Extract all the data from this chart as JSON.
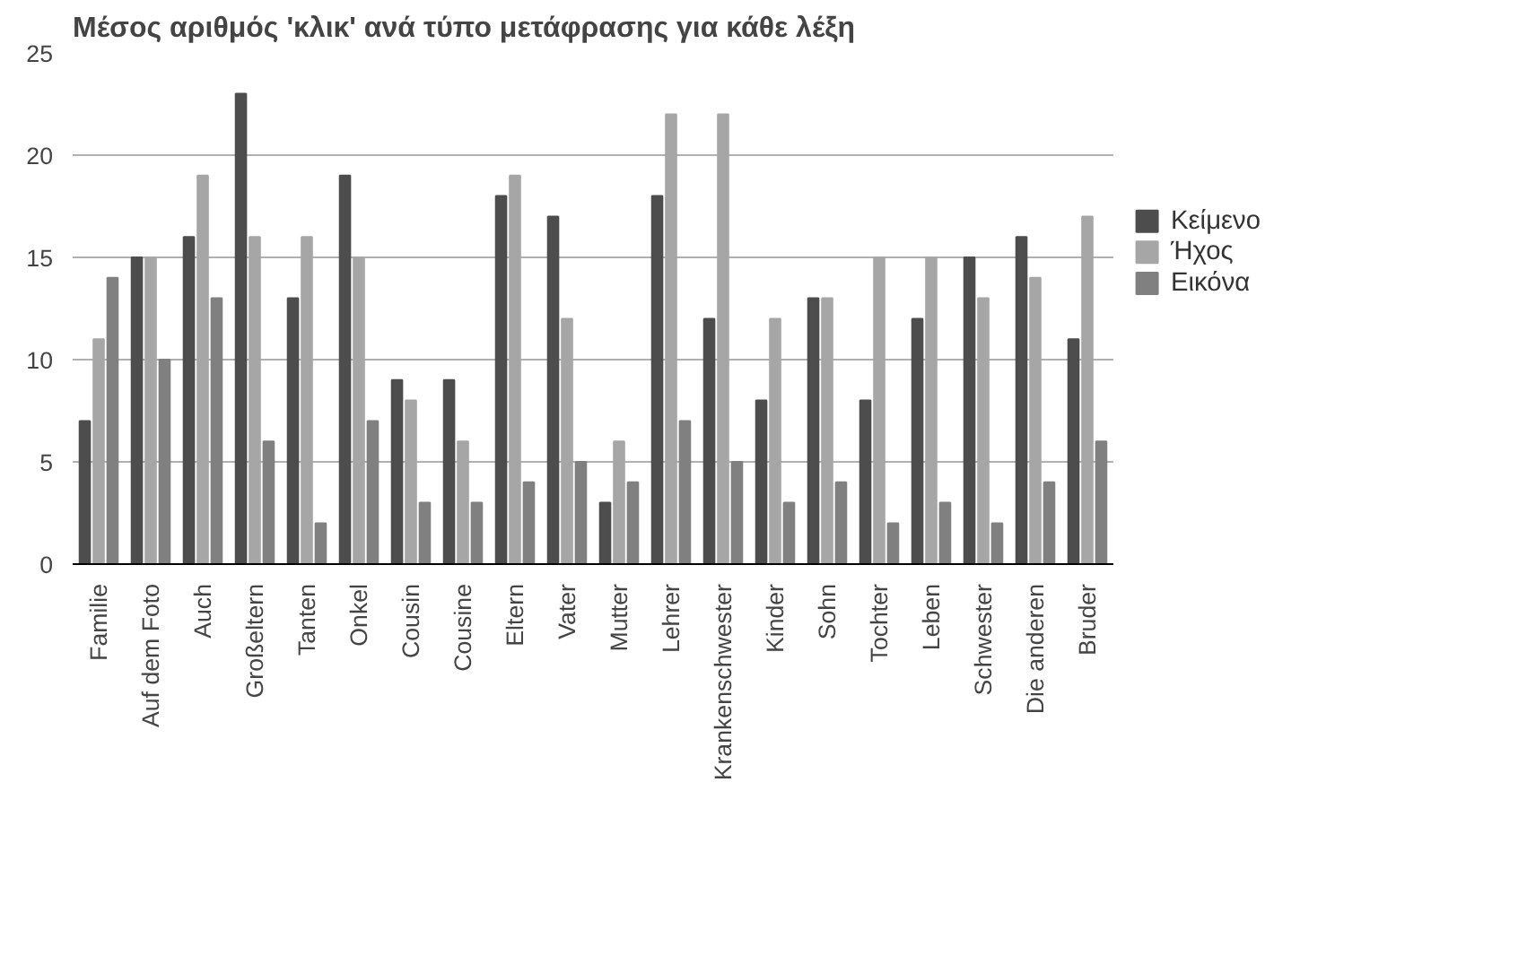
{
  "chart_data": {
    "type": "bar",
    "title": "Μέσος αριθμός 'κλικ' ανά τύπο μετάφρασης για κάθε λέξη",
    "categories": [
      "Familie",
      "Auf dem Foto",
      "Auch",
      "Großeltern",
      "Tanten",
      "Onkel",
      "Cousin",
      "Cousine",
      "Eltern",
      "Vater",
      "Mutter",
      "Lehrer",
      "Krankenschwester",
      "Kinder",
      "Sohn",
      "Tochter",
      "Leben",
      "Schwester",
      "Die anderen",
      "Bruder"
    ],
    "series": [
      {
        "name": "Κείμενο",
        "color": "#4d4d4d",
        "values": [
          7,
          15,
          16,
          23,
          13,
          19,
          9,
          9,
          18,
          17,
          3,
          18,
          12,
          8,
          13,
          8,
          12,
          15,
          16,
          11
        ]
      },
      {
        "name": "Ήχος",
        "color": "#a6a6a6",
        "values": [
          11,
          15,
          19,
          16,
          16,
          15,
          8,
          6,
          19,
          12,
          6,
          22,
          22,
          12,
          13,
          15,
          15,
          13,
          14,
          17
        ]
      },
      {
        "name": "Εικόνα",
        "color": "#808080",
        "values": [
          14,
          10,
          13,
          6,
          2,
          7,
          3,
          3,
          4,
          5,
          4,
          7,
          5,
          3,
          4,
          2,
          3,
          2,
          4,
          6
        ]
      }
    ],
    "ylim": [
      0,
      25
    ],
    "yticks": [
      0,
      5,
      10,
      15,
      20,
      25
    ],
    "grid": "y",
    "legend": "right"
  }
}
